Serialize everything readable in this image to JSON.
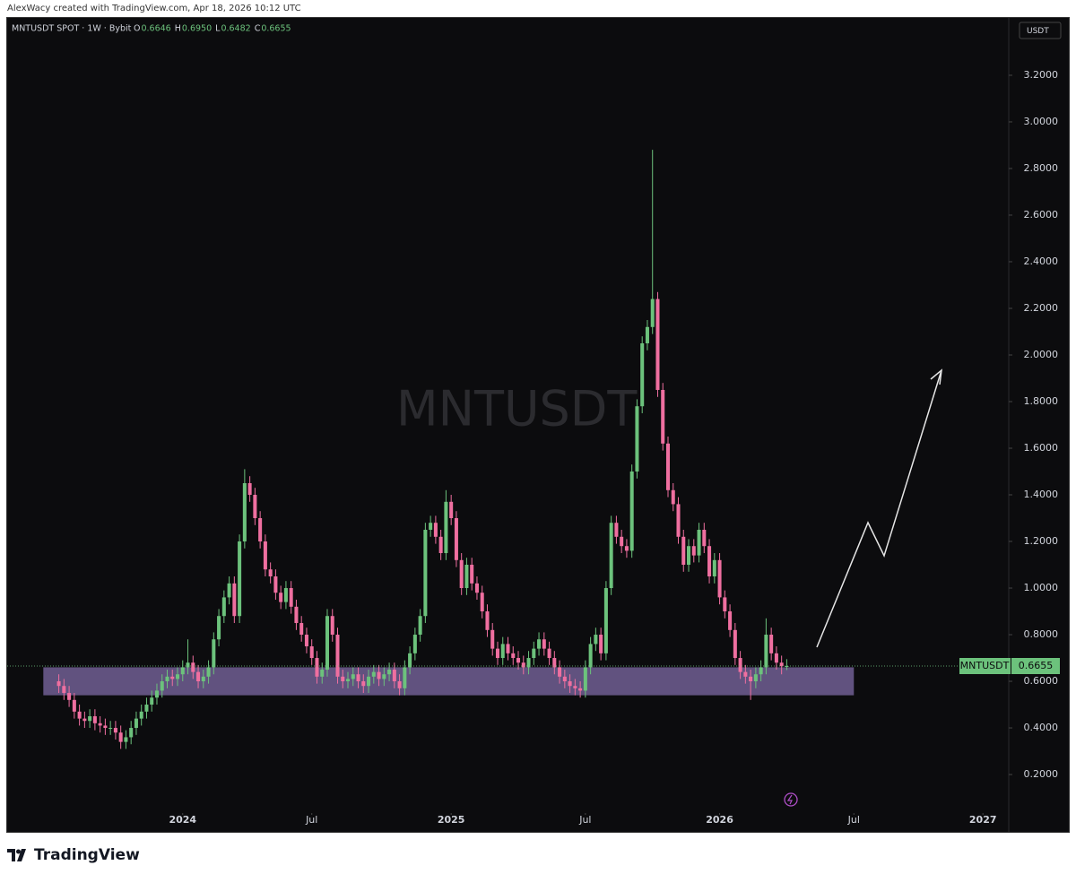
{
  "header": {
    "credit": "AlexWacy created with TradingView.com, Apr 18, 2026 10:12 UTC"
  },
  "footer": {
    "brand": "TradingView"
  },
  "chart_data": {
    "type": "candlestick",
    "symbol_line": "MNTUSDT SPOT · 1W · Bybit",
    "legend_prefixes": [
      "O",
      "H",
      "L",
      "C"
    ],
    "legend_values": [
      "0.6646",
      "0.6950",
      "0.6482",
      "0.6655"
    ],
    "watermark": "MNTUSDT",
    "currency": "USDT",
    "symbol": "MNTUSDT",
    "up_color": "#6cc27c",
    "down_color": "#ef6fa0",
    "zone": {
      "low": 0.54,
      "high": 0.66,
      "start": -3,
      "end": 154,
      "color": "#6a5a8c"
    },
    "grid": false,
    "xlim": [
      -10,
      184
    ],
    "xticks": [
      {
        "value": 24,
        "label": "2024"
      },
      {
        "value": 49,
        "label": "Jul"
      },
      {
        "value": 76,
        "label": "2025"
      },
      {
        "value": 102,
        "label": "Jul"
      },
      {
        "value": 128,
        "label": "2026"
      },
      {
        "value": 154,
        "label": "Jul"
      },
      {
        "value": 179,
        "label": "2027"
      }
    ],
    "ylim": [
      -0.046,
      3.446
    ],
    "yticks": [
      {
        "value": 0.2,
        "label": "0.2000"
      },
      {
        "value": 0.4,
        "label": "0.4000"
      },
      {
        "value": 0.6,
        "label": "0.6000"
      },
      {
        "value": 0.8,
        "label": "0.8000"
      },
      {
        "value": 1.0,
        "label": "1.0000"
      },
      {
        "value": 1.2,
        "label": "1.2000"
      },
      {
        "value": 1.4,
        "label": "1.4000"
      },
      {
        "value": 1.6,
        "label": "1.6000"
      },
      {
        "value": 1.8,
        "label": "1.8000"
      },
      {
        "value": 2.0,
        "label": "2.0000"
      },
      {
        "value": 2.2,
        "label": "2.2000"
      },
      {
        "value": 2.4,
        "label": "2.4000"
      },
      {
        "value": 2.6,
        "label": "2.6000"
      },
      {
        "value": 2.8,
        "label": "2.8000"
      },
      {
        "value": 3.0,
        "label": "3.0000"
      },
      {
        "value": 3.2,
        "label": "3.2000"
      }
    ],
    "open": [
      0.6,
      0.58,
      0.55,
      0.52,
      0.47,
      0.44,
      0.43,
      0.45,
      0.42,
      0.41,
      0.4,
      0.4,
      0.38,
      0.34,
      0.36,
      0.4,
      0.44,
      0.47,
      0.5,
      0.53,
      0.56,
      0.6,
      0.62,
      0.61,
      0.63,
      0.66,
      0.68,
      0.64,
      0.6,
      0.62,
      0.66,
      0.78,
      0.88,
      0.96,
      1.02,
      0.88,
      1.2,
      1.45,
      1.4,
      1.3,
      1.2,
      1.08,
      1.05,
      0.98,
      0.94,
      1.0,
      0.92,
      0.85,
      0.8,
      0.75,
      0.7,
      0.62,
      0.65,
      0.88,
      0.8,
      0.62,
      0.6,
      0.61,
      0.63,
      0.6,
      0.58,
      0.62,
      0.64,
      0.61,
      0.63,
      0.65,
      0.6,
      0.57,
      0.66,
      0.72,
      0.8,
      0.88,
      1.25,
      1.28,
      1.22,
      1.15,
      1.37,
      1.3,
      1.12,
      1.0,
      1.1,
      1.02,
      0.98,
      0.9,
      0.82,
      0.74,
      0.7,
      0.76,
      0.72,
      0.7,
      0.68,
      0.66,
      0.7,
      0.74,
      0.78,
      0.74,
      0.7,
      0.66,
      0.62,
      0.6,
      0.58,
      0.57,
      0.56,
      0.66,
      0.76,
      0.8,
      0.72,
      1.0,
      1.28,
      1.22,
      1.18,
      1.16,
      1.5,
      1.78,
      2.05,
      2.12,
      2.24,
      1.85,
      1.62,
      1.42,
      1.36,
      1.22,
      1.1,
      1.18,
      1.14,
      1.25,
      1.18,
      1.05,
      1.12,
      0.96,
      0.9,
      0.82,
      0.7,
      0.64,
      0.62,
      0.6,
      0.63,
      0.66,
      0.8,
      0.72,
      0.68,
      0.6646
    ],
    "high": [
      0.63,
      0.61,
      0.58,
      0.55,
      0.5,
      0.47,
      0.48,
      0.48,
      0.45,
      0.44,
      0.43,
      0.43,
      0.41,
      0.39,
      0.43,
      0.47,
      0.5,
      0.53,
      0.56,
      0.59,
      0.63,
      0.65,
      0.65,
      0.66,
      0.69,
      0.78,
      0.71,
      0.67,
      0.65,
      0.69,
      0.81,
      0.91,
      0.99,
      1.05,
      1.05,
      1.23,
      1.51,
      1.48,
      1.43,
      1.33,
      1.23,
      1.11,
      1.08,
      1.01,
      1.03,
      1.03,
      0.95,
      0.88,
      0.83,
      0.78,
      0.73,
      0.68,
      0.91,
      0.91,
      0.83,
      0.65,
      0.64,
      0.66,
      0.66,
      0.63,
      0.65,
      0.67,
      0.67,
      0.66,
      0.68,
      0.68,
      0.63,
      0.69,
      0.75,
      0.83,
      0.91,
      1.28,
      1.31,
      1.31,
      1.25,
      1.42,
      1.4,
      1.33,
      1.15,
      1.13,
      1.13,
      1.05,
      1.01,
      0.93,
      0.85,
      0.77,
      0.79,
      0.79,
      0.75,
      0.73,
      0.71,
      0.73,
      0.77,
      0.81,
      0.81,
      0.77,
      0.73,
      0.69,
      0.65,
      0.63,
      0.61,
      0.6,
      0.69,
      0.79,
      0.83,
      0.83,
      1.03,
      1.31,
      1.31,
      1.25,
      1.21,
      1.53,
      1.81,
      2.08,
      2.15,
      2.88,
      2.27,
      1.88,
      1.65,
      1.45,
      1.39,
      1.25,
      1.21,
      1.21,
      1.28,
      1.28,
      1.21,
      1.15,
      1.15,
      0.99,
      0.93,
      0.85,
      0.73,
      0.67,
      0.65,
      0.66,
      0.69,
      0.87,
      0.83,
      0.75,
      0.71,
      0.695
    ],
    "low": [
      0.55,
      0.52,
      0.49,
      0.44,
      0.41,
      0.4,
      0.4,
      0.39,
      0.38,
      0.37,
      0.37,
      0.35,
      0.31,
      0.31,
      0.33,
      0.37,
      0.41,
      0.44,
      0.47,
      0.5,
      0.53,
      0.57,
      0.58,
      0.58,
      0.6,
      0.63,
      0.61,
      0.57,
      0.57,
      0.59,
      0.63,
      0.75,
      0.85,
      0.93,
      0.85,
      0.85,
      1.17,
      1.37,
      1.27,
      1.17,
      1.05,
      1.02,
      0.95,
      0.91,
      0.91,
      0.89,
      0.82,
      0.77,
      0.72,
      0.67,
      0.59,
      0.59,
      0.62,
      0.77,
      0.59,
      0.57,
      0.57,
      0.58,
      0.57,
      0.55,
      0.55,
      0.59,
      0.58,
      0.58,
      0.6,
      0.57,
      0.54,
      0.54,
      0.63,
      0.69,
      0.77,
      0.85,
      1.22,
      1.19,
      1.12,
      1.12,
      1.27,
      1.09,
      0.97,
      0.97,
      0.99,
      0.95,
      0.87,
      0.79,
      0.71,
      0.67,
      0.67,
      0.69,
      0.67,
      0.65,
      0.63,
      0.63,
      0.67,
      0.71,
      0.71,
      0.67,
      0.63,
      0.59,
      0.57,
      0.55,
      0.54,
      0.53,
      0.53,
      0.63,
      0.73,
      0.69,
      0.69,
      0.97,
      1.19,
      1.15,
      1.13,
      1.13,
      1.47,
      1.75,
      2.02,
      2.09,
      1.82,
      1.59,
      1.39,
      1.33,
      1.19,
      1.07,
      1.07,
      1.11,
      1.11,
      1.15,
      1.02,
      1.02,
      0.93,
      0.87,
      0.79,
      0.67,
      0.61,
      0.59,
      0.52,
      0.57,
      0.6,
      0.63,
      0.69,
      0.65,
      0.63,
      0.6482
    ],
    "close": [
      0.58,
      0.55,
      0.52,
      0.47,
      0.44,
      0.43,
      0.45,
      0.42,
      0.41,
      0.4,
      0.4,
      0.38,
      0.34,
      0.36,
      0.4,
      0.44,
      0.47,
      0.5,
      0.53,
      0.56,
      0.6,
      0.62,
      0.61,
      0.63,
      0.66,
      0.68,
      0.64,
      0.6,
      0.62,
      0.66,
      0.78,
      0.88,
      0.96,
      1.02,
      0.88,
      1.2,
      1.45,
      1.4,
      1.3,
      1.2,
      1.08,
      1.05,
      0.98,
      0.94,
      1.0,
      0.92,
      0.85,
      0.8,
      0.75,
      0.7,
      0.62,
      0.65,
      0.88,
      0.8,
      0.62,
      0.6,
      0.61,
      0.63,
      0.6,
      0.58,
      0.62,
      0.64,
      0.61,
      0.63,
      0.65,
      0.6,
      0.57,
      0.66,
      0.72,
      0.8,
      0.88,
      1.25,
      1.28,
      1.22,
      1.15,
      1.37,
      1.3,
      1.12,
      1.0,
      1.1,
      1.02,
      0.98,
      0.9,
      0.82,
      0.74,
      0.7,
      0.76,
      0.72,
      0.7,
      0.68,
      0.66,
      0.7,
      0.74,
      0.78,
      0.74,
      0.7,
      0.66,
      0.62,
      0.6,
      0.58,
      0.57,
      0.56,
      0.66,
      0.76,
      0.8,
      0.72,
      1.0,
      1.28,
      1.22,
      1.18,
      1.16,
      1.5,
      1.78,
      2.05,
      2.12,
      2.24,
      1.85,
      1.62,
      1.42,
      1.36,
      1.22,
      1.1,
      1.18,
      1.14,
      1.25,
      1.18,
      1.05,
      1.12,
      0.96,
      0.9,
      0.82,
      0.7,
      0.64,
      0.62,
      0.6,
      0.63,
      0.66,
      0.8,
      0.72,
      0.68,
      0.6646,
      0.6655
    ]
  }
}
